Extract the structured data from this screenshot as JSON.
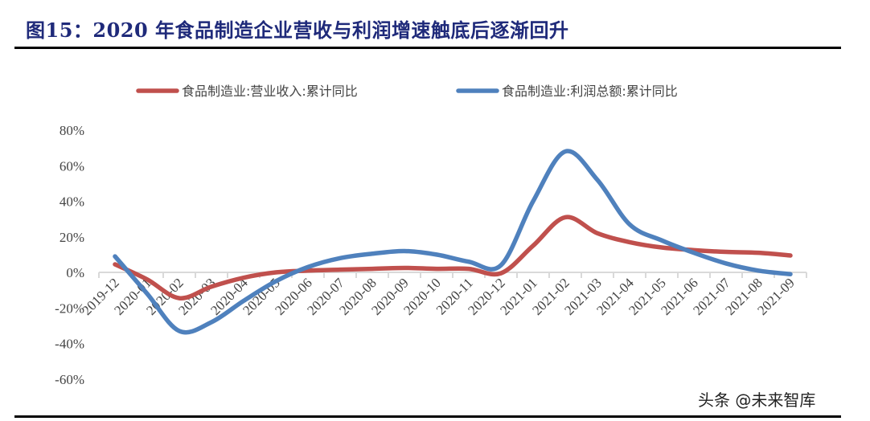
{
  "header": {
    "title": "图15：2020 年食品制造企业营收与利润增速触底后逐渐回升"
  },
  "watermark": "头条 @未来智库",
  "colors": {
    "title": "#1f2a7a",
    "revenue": "#c0504d",
    "profit": "#4f81bd",
    "axis": "#d9d9d9"
  },
  "chart_data": {
    "type": "line",
    "title": "2020 年食品制造企业营收与利润增速触底后逐渐回升",
    "xlabel": "",
    "ylabel": "",
    "ylim": [
      -60,
      80
    ],
    "yticks": [
      "80%",
      "60%",
      "40%",
      "20%",
      "0%",
      "-20%",
      "-40%",
      "-60%"
    ],
    "grid": false,
    "legend_position": "top",
    "categories": [
      "2019-12",
      "2020-01",
      "2020-02",
      "2020-03",
      "2020-04",
      "2020-05",
      "2020-06",
      "2020-07",
      "2020-08",
      "2020-09",
      "2020-10",
      "2020-11",
      "2020-12",
      "2021-01",
      "2021-02",
      "2021-03",
      "2021-04",
      "2021-05",
      "2021-06",
      "2021-07",
      "2021-08",
      "2021-09"
    ],
    "series": [
      {
        "name": "食品制造业:营业收入:累计同比",
        "color": "#c0504d",
        "values": [
          4.5,
          -4,
          -14.5,
          -8,
          -3,
          0,
          1,
          1.5,
          2,
          2.5,
          2,
          2,
          -0.5,
          15,
          31,
          22,
          17,
          14,
          12.5,
          11.5,
          11,
          9.5
        ]
      },
      {
        "name": "食品制造业:利润总额:累计同比",
        "color": "#4f81bd",
        "values": [
          9,
          -12,
          -33,
          -28,
          -16,
          -5,
          3,
          8,
          10.5,
          12,
          10,
          6,
          4,
          40,
          68,
          52,
          27,
          18,
          11,
          5,
          1,
          -1
        ]
      }
    ]
  }
}
